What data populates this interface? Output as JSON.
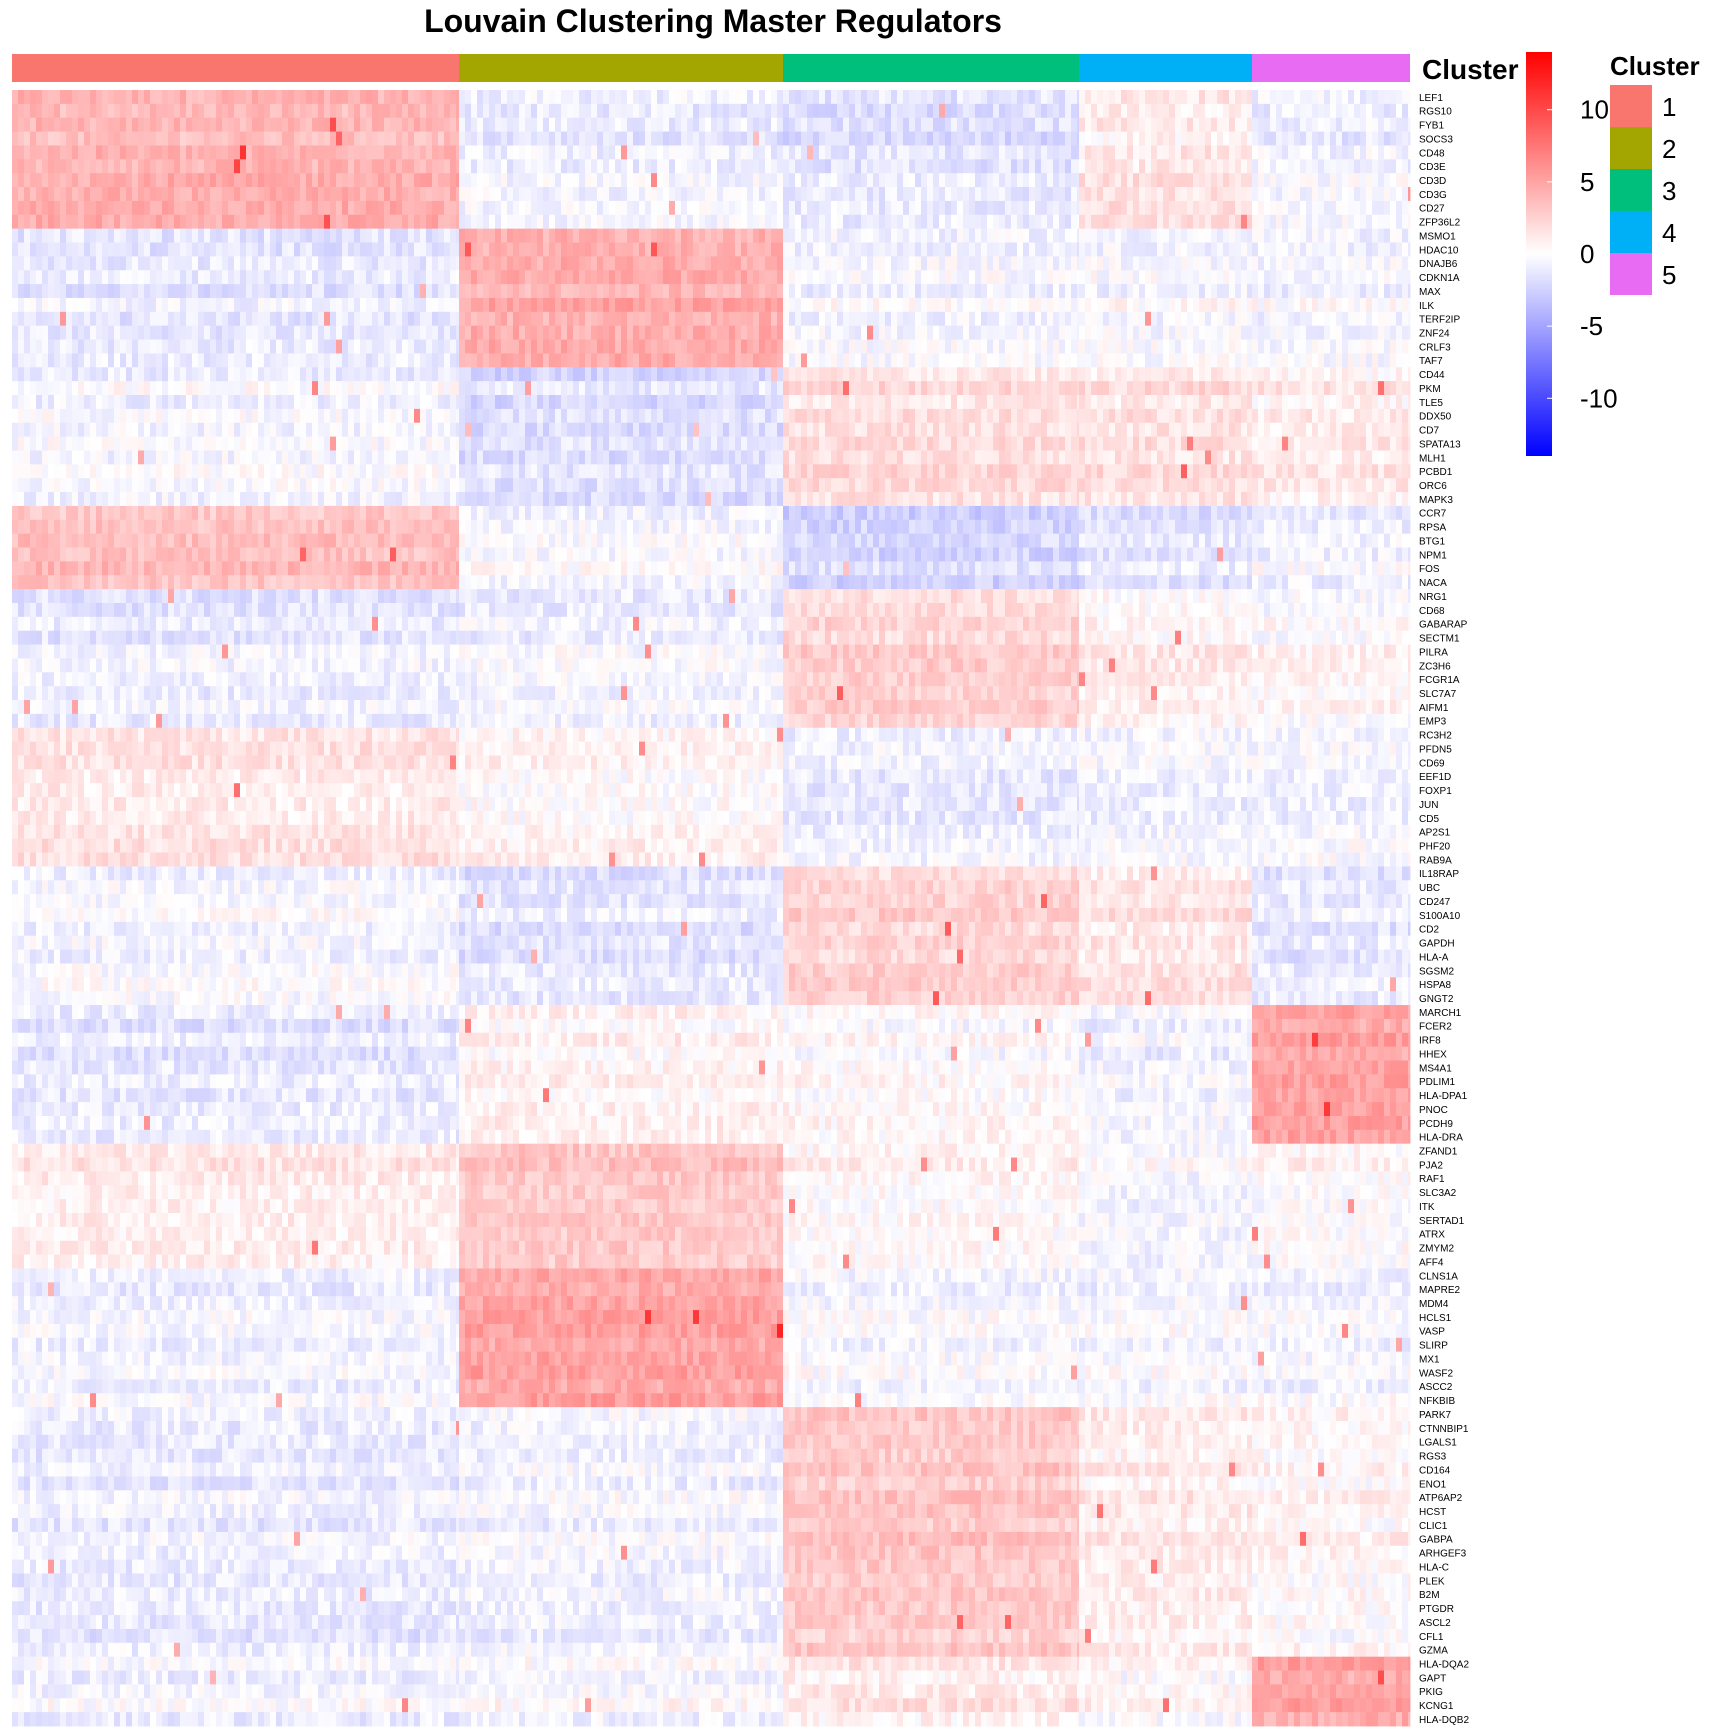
{
  "chart_data": {
    "type": "heatmap",
    "title": "Louvain Clustering Master Regulators",
    "annotation_label": "Cluster",
    "legend_title": "Cluster",
    "clusters": [
      "1",
      "2",
      "3",
      "4",
      "5"
    ],
    "cluster_colors": [
      "#F8766D",
      "#A3A500",
      "#00BF7D",
      "#00B0F6",
      "#E76BF3"
    ],
    "cluster_proportions": [
      0.32,
      0.232,
      0.212,
      0.124,
      0.112
    ],
    "color_scale": {
      "low": "#0000FF",
      "mid": "#FFFFFF",
      "high": "#FF0000",
      "min": -14,
      "max": 14,
      "ticks": [
        10,
        5,
        0,
        -5,
        -10
      ],
      "tick_labels": [
        "10",
        "5",
        "0",
        "-5",
        "-10"
      ]
    },
    "genes": [
      "LEF1",
      "RGS10",
      "FYB1",
      "SOCS3",
      "CD48",
      "CD3E",
      "CD3D",
      "CD3G",
      "CD27",
      "ZFP36L2",
      "MSMO1",
      "HDAC10",
      "DNAJB6",
      "CDKN1A",
      "MAX",
      "ILK",
      "TERF2IP",
      "ZNF24",
      "CRLF3",
      "TAF7",
      "CD44",
      "PKM",
      "TLE5",
      "DDX50",
      "CD7",
      "SPATA13",
      "MLH1",
      "PCBD1",
      "ORC6",
      "MAPK3",
      "CCR7",
      "RPSA",
      "BTG1",
      "NPM1",
      "FOS",
      "NACA",
      "NRG1",
      "CD68",
      "GABARAP",
      "SECTM1",
      "PILRA",
      "ZC3H6",
      "FCGR1A",
      "SLC7A7",
      "AIFM1",
      "EMP3",
      "RC3H2",
      "PFDN5",
      "CD69",
      "EEF1D",
      "FOXP1",
      "JUN",
      "CD5",
      "AP2S1",
      "PHF20",
      "RAB9A",
      "IL18RAP",
      "UBC",
      "CD247",
      "S100A10",
      "CD2",
      "GAPDH",
      "HLA-A",
      "SGSM2",
      "HSPA8",
      "GNGT2",
      "MARCH1",
      "FCER2",
      "IRF8",
      "HHEX",
      "MS4A1",
      "PDLIM1",
      "HLA-DPA1",
      "PNOC",
      "PCDH9",
      "HLA-DRA",
      "ZFAND1",
      "PJA2",
      "RAF1",
      "SLC3A2",
      "ITK",
      "SERTAD1",
      "ATRX",
      "ZMYM2",
      "AFF4",
      "CLNS1A",
      "MAPRE2",
      "MDM4",
      "HCLS1",
      "VASP",
      "SLIRP",
      "MX1",
      "WASF2",
      "ASCC2",
      "NFKBIB",
      "PARK7",
      "CTNNBIP1",
      "LGALS1",
      "RGS3",
      "CD164",
      "ENO1",
      "ATP6AP2",
      "HCST",
      "CLIC1",
      "GABPA",
      "ARHGEF3",
      "HLA-C",
      "PLEK",
      "B2M",
      "PTGDR",
      "ASCL2",
      "CFL1",
      "GZMA",
      "HLA-DQA2",
      "GAPT",
      "PKIG",
      "KCNG1",
      "HLA-DQB2"
    ],
    "gene_blocks": [
      {
        "rows": 10,
        "pattern": [
          4,
          -1,
          -1.6,
          1.2,
          -0.8
        ]
      },
      {
        "rows": 10,
        "pattern": [
          -1.2,
          4.5,
          -0.4,
          -0.3,
          -0.4
        ]
      },
      {
        "rows": 10,
        "pattern": [
          -0.4,
          -1.8,
          1.8,
          1.6,
          1.0
        ]
      },
      {
        "rows": 6,
        "pattern": [
          3.5,
          -0.2,
          -2.2,
          -1.4,
          -0.6
        ]
      },
      {
        "rows": 10,
        "pattern": [
          -1.0,
          -0.6,
          2.4,
          0.8,
          0.3
        ]
      },
      {
        "rows": 10,
        "pattern": [
          1.5,
          0.6,
          -0.8,
          -0.5,
          -0.4
        ]
      },
      {
        "rows": 10,
        "pattern": [
          -0.4,
          -1.4,
          2.4,
          1.4,
          -1.2
        ]
      },
      {
        "rows": 10,
        "pattern": [
          -1.2,
          0.6,
          0.2,
          -0.6,
          5.0
        ]
      },
      {
        "rows": 9,
        "pattern": [
          1.2,
          3.2,
          0.6,
          -0.2,
          0.4
        ]
      },
      {
        "rows": 10,
        "pattern": [
          -0.6,
          5.0,
          -0.3,
          -0.3,
          -0.4
        ]
      },
      {
        "rows": 18,
        "pattern": [
          -1.0,
          -0.6,
          3.0,
          1.0,
          0.4
        ]
      },
      {
        "rows": 5,
        "pattern": [
          -0.5,
          -0.2,
          1.2,
          0.4,
          5.0
        ]
      }
    ]
  }
}
